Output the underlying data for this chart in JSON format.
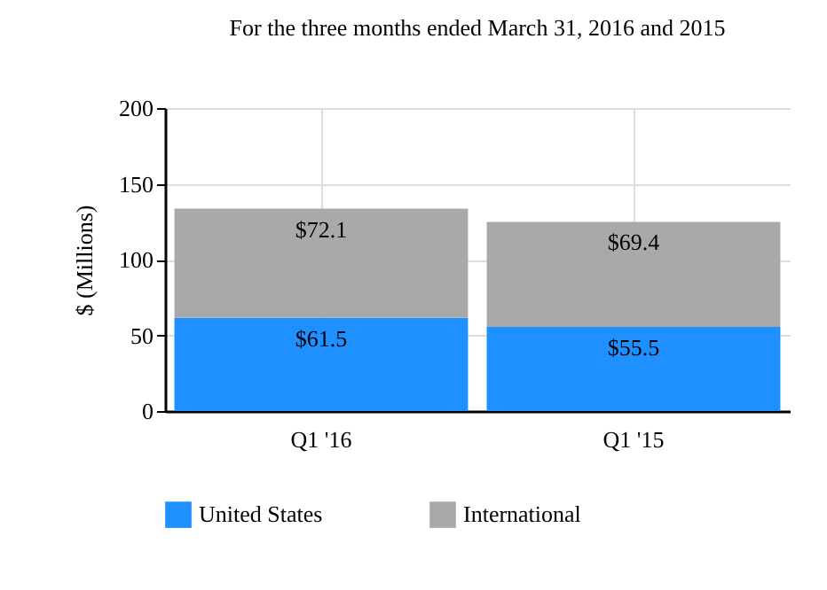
{
  "chart_data": {
    "type": "bar",
    "title": "For the three months ended March 31, 2016 and 2015",
    "ylabel": "$ (Millions)",
    "categories": [
      "Q1 '16",
      "Q1 '15"
    ],
    "stacked": true,
    "ylim": [
      0,
      200
    ],
    "yticks": [
      0,
      50,
      100,
      150,
      200
    ],
    "grid": true,
    "legend": "bottom",
    "series": [
      {
        "name": "United States",
        "color": "#1e90ff",
        "values": [
          61.5,
          55.5
        ],
        "value_labels": [
          "$61.5",
          "$55.5"
        ]
      },
      {
        "name": "International",
        "color": "#a9a9a9",
        "values": [
          72.1,
          69.4
        ],
        "value_labels": [
          "$72.1",
          "$69.4"
        ]
      }
    ]
  }
}
